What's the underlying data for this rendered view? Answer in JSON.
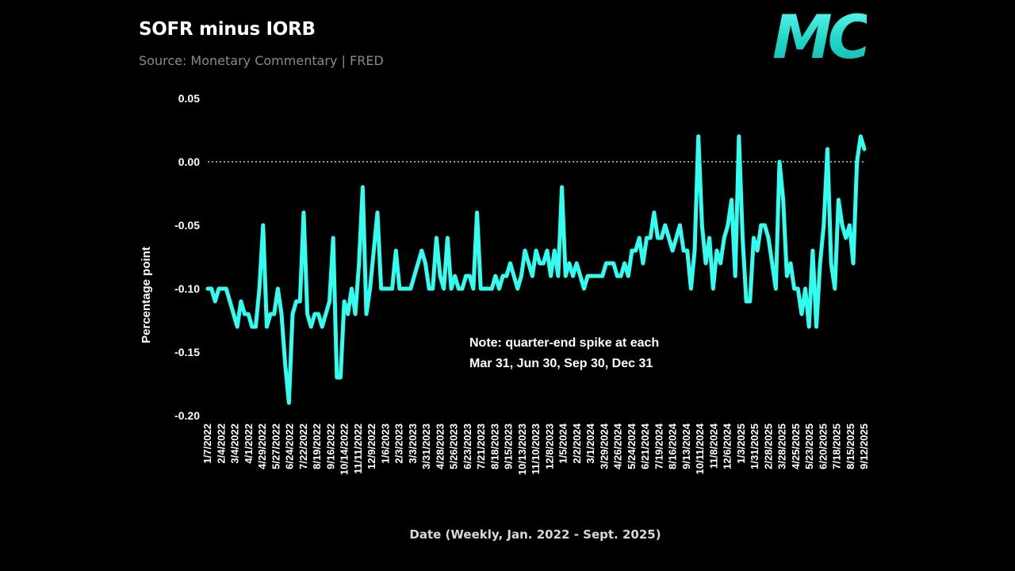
{
  "header": {
    "title": "SOFR minus IORB",
    "subtitle": "Source: Monetary Commentary | FRED",
    "logo": "MC"
  },
  "note": "Note: quarter-end spike at each Mar 31, Jun 30, Sep 30, Dec 31",
  "colors": {
    "background": "#000000",
    "line": "#33fff0",
    "zero_line": "#8fe8cc",
    "text": "#ffffff"
  },
  "chart_data": {
    "type": "line",
    "ylabel": "Percentage point",
    "xlabel": "Date (Weekly, Jan. 2022 - Sept. 2025)",
    "ylim": [
      -0.2,
      0.05
    ],
    "yticks": [
      0.05,
      0.0,
      -0.05,
      -0.1,
      -0.15,
      -0.2
    ],
    "ytick_labels": [
      "0.05",
      "0.00",
      "-0.05",
      "-0.10",
      "-0.15",
      "-0.20"
    ],
    "zero_reference_line": true,
    "x_tick_labels": [
      "1/7/2022",
      "2/4/2022",
      "3/4/2022",
      "4/1/2022",
      "4/29/2022",
      "5/27/2022",
      "6/24/2022",
      "7/22/2022",
      "8/19/2022",
      "9/16/2022",
      "10/14/2022",
      "11/11/2022",
      "12/9/2022",
      "1/6/2023",
      "2/3/2023",
      "3/3/2023",
      "3/31/2023",
      "4/28/2023",
      "5/26/2023",
      "6/23/2023",
      "7/21/2023",
      "8/18/2023",
      "9/15/2023",
      "10/13/2023",
      "11/10/2023",
      "12/8/2023",
      "1/5/2024",
      "2/2/2024",
      "3/1/2024",
      "3/29/2024",
      "4/26/2024",
      "5/24/2024",
      "6/21/2024",
      "7/19/2024",
      "8/16/2024",
      "9/13/2024",
      "10/11/2024",
      "11/8/2024",
      "12/6/2024",
      "1/3/2025",
      "1/31/2025",
      "2/28/2025",
      "3/28/2025",
      "4/25/2025",
      "5/23/2025",
      "6/20/2025",
      "7/18/2025",
      "8/15/2025",
      "9/12/2025"
    ],
    "series": [
      {
        "values": [
          -0.1,
          -0.1,
          -0.11,
          -0.1,
          -0.1,
          -0.1,
          -0.11,
          -0.12,
          -0.13,
          -0.11,
          -0.12,
          -0.12,
          -0.13,
          -0.13,
          -0.1,
          -0.05,
          -0.13,
          -0.12,
          -0.12,
          -0.1,
          -0.12,
          -0.16,
          -0.19,
          -0.12,
          -0.11,
          -0.11,
          -0.04,
          -0.12,
          -0.13,
          -0.12,
          -0.12,
          -0.13,
          -0.12,
          -0.11,
          -0.06,
          -0.17,
          -0.17,
          -0.11,
          -0.12,
          -0.1,
          -0.12,
          -0.08,
          -0.02,
          -0.12,
          -0.1,
          -0.07,
          -0.04,
          -0.1,
          -0.1,
          -0.1,
          -0.1,
          -0.07,
          -0.1,
          -0.1,
          -0.1,
          -0.1,
          -0.09,
          -0.08,
          -0.07,
          -0.08,
          -0.1,
          -0.1,
          -0.06,
          -0.09,
          -0.1,
          -0.06,
          -0.1,
          -0.09,
          -0.1,
          -0.1,
          -0.09,
          -0.09,
          -0.1,
          -0.04,
          -0.1,
          -0.1,
          -0.1,
          -0.1,
          -0.09,
          -0.1,
          -0.09,
          -0.09,
          -0.08,
          -0.09,
          -0.1,
          -0.09,
          -0.07,
          -0.08,
          -0.09,
          -0.07,
          -0.08,
          -0.08,
          -0.07,
          -0.09,
          -0.07,
          -0.09,
          -0.02,
          -0.09,
          -0.08,
          -0.09,
          -0.08,
          -0.09,
          -0.1,
          -0.09,
          -0.09,
          -0.09,
          -0.09,
          -0.09,
          -0.08,
          -0.08,
          -0.08,
          -0.09,
          -0.09,
          -0.08,
          -0.09,
          -0.07,
          -0.07,
          -0.06,
          -0.08,
          -0.06,
          -0.06,
          -0.04,
          -0.06,
          -0.06,
          -0.05,
          -0.06,
          -0.07,
          -0.06,
          -0.05,
          -0.07,
          -0.07,
          -0.1,
          -0.07,
          0.02,
          -0.05,
          -0.08,
          -0.06,
          -0.1,
          -0.07,
          -0.08,
          -0.06,
          -0.05,
          -0.03,
          -0.09,
          0.02,
          -0.06,
          -0.11,
          -0.11,
          -0.06,
          -0.07,
          -0.05,
          -0.05,
          -0.06,
          -0.08,
          -0.1,
          0.0,
          -0.03,
          -0.09,
          -0.08,
          -0.1,
          -0.1,
          -0.12,
          -0.1,
          -0.13,
          -0.07,
          -0.13,
          -0.08,
          -0.05,
          0.01,
          -0.08,
          -0.1,
          -0.03,
          -0.05,
          -0.06,
          -0.05,
          -0.08,
          0.0,
          0.02,
          0.01
        ]
      }
    ]
  }
}
